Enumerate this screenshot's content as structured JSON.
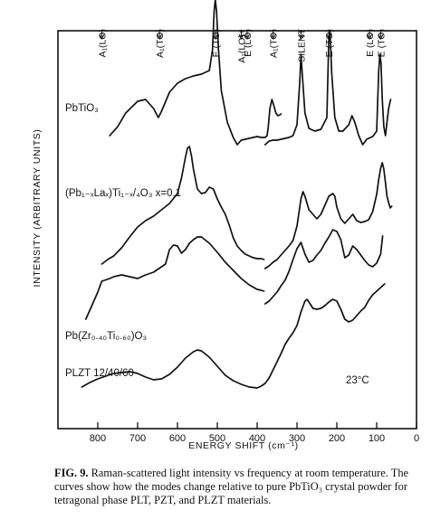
{
  "chart_data": {
    "type": "line",
    "xlabel": "ENERGY SHIFT (cm⁻¹)",
    "ylabel": "INTENSITY (ARBITRARY UNITS)",
    "xlim": [
      900,
      0
    ],
    "xticks": [
      "800",
      "700",
      "600",
      "500",
      "400",
      "300",
      "200",
      "100",
      "0"
    ],
    "grid": false,
    "temperature_label": "23°C",
    "mode_labels": [
      {
        "text": "A₁(LO)",
        "x": 790
      },
      {
        "text": "A₁(TO)",
        "x": 645
      },
      {
        "text": "E (TO)",
        "x": 505
      },
      {
        "text": "A₁(LO)+",
        "x": 440
      },
      {
        "text": "E (LO)",
        "x": 425
      },
      {
        "text": "A₁(TO)",
        "x": 360
      },
      {
        "text": "SILENT",
        "x": 290
      },
      {
        "text": "E (TO)",
        "x": 220
      },
      {
        "text": "E (LO)",
        "x": 118
      },
      {
        "text": "E (TO)",
        "x": 90
      }
    ],
    "series": [
      {
        "name": "PbTiO₃",
        "segments": [
          [
            [
              770,
              40
            ],
            [
              750,
              50
            ],
            [
              730,
              65
            ],
            [
              700,
              78
            ],
            [
              680,
              80
            ],
            [
              660,
              70
            ],
            [
              648,
              60
            ],
            [
              640,
              67
            ],
            [
              620,
              88
            ],
            [
              600,
              98
            ],
            [
              580,
              103
            ],
            [
              560,
              106
            ],
            [
              540,
              108
            ],
            [
              520,
              112
            ],
            [
              512,
              135
            ],
            [
              508,
              178
            ],
            [
              505,
              190
            ],
            [
              502,
              178
            ],
            [
              497,
              135
            ],
            [
              490,
              90
            ],
            [
              475,
              55
            ],
            [
              460,
              38
            ],
            [
              450,
              30
            ],
            [
              440,
              35
            ],
            [
              430,
              36
            ],
            [
              420,
              37
            ],
            [
              410,
              38
            ],
            [
              400,
              39
            ],
            [
              390,
              38
            ],
            [
              380,
              38
            ],
            [
              375,
              40
            ],
            [
              372,
              50
            ],
            [
              368,
              70
            ],
            [
              363,
              80
            ],
            [
              358,
              73
            ],
            [
              353,
              65
            ],
            [
              348,
              62
            ],
            [
              343,
              63
            ],
            [
              340,
              64
            ]
          ],
          [
            [
              380,
              30
            ],
            [
              370,
              34
            ],
            [
              360,
              35
            ],
            [
              350,
              35
            ],
            [
              340,
              36
            ],
            [
              320,
              38
            ],
            [
              310,
              40
            ],
            [
              300,
              52
            ],
            [
              293,
              100
            ],
            [
              290,
              130
            ],
            [
              287,
              110
            ],
            [
              280,
              65
            ],
            [
              270,
              48
            ],
            [
              255,
              45
            ],
            [
              240,
              47
            ],
            [
              225,
              60
            ],
            [
              220,
              150
            ],
            [
              217,
              155
            ],
            [
              213,
              110
            ],
            [
              205,
              60
            ],
            [
              195,
              45
            ],
            [
              185,
              45
            ],
            [
              170,
              52
            ],
            [
              162,
              62
            ],
            [
              155,
              55
            ],
            [
              145,
              40
            ],
            [
              140,
              35
            ],
            [
              135,
              30
            ],
            [
              130,
              33
            ],
            [
              125,
              36
            ],
            [
              120,
              37
            ],
            [
              110,
              39
            ],
            [
              100,
              45
            ],
            [
              95,
              110
            ],
            [
              92,
              130
            ],
            [
              89,
              120
            ],
            [
              86,
              80
            ],
            [
              82,
              50
            ],
            [
              78,
              40
            ],
            [
              74,
              55
            ],
            [
              70,
              70
            ],
            [
              65,
              80
            ]
          ]
        ]
      },
      {
        "name": "(Pb₁₋ₓLaₓ)Ti₁₋ₓ/₄O₃ x=0.1",
        "segments": [
          [
            [
              790,
              20
            ],
            [
              775,
              25
            ],
            [
              760,
              29
            ],
            [
              740,
              38
            ],
            [
              720,
              50
            ],
            [
              700,
              61
            ],
            [
              680,
              68
            ],
            [
              660,
              73
            ],
            [
              640,
              80
            ],
            [
              620,
              87
            ],
            [
              600,
              98
            ],
            [
              590,
              115
            ],
            [
              580,
              138
            ],
            [
              575,
              148
            ],
            [
              570,
              150
            ],
            [
              565,
              140
            ],
            [
              560,
              125
            ],
            [
              550,
              103
            ],
            [
              540,
              98
            ],
            [
              530,
              99
            ],
            [
              520,
              105
            ],
            [
              510,
              103
            ],
            [
              500,
              92
            ],
            [
              490,
              83
            ],
            [
              480,
              75
            ],
            [
              470,
              63
            ],
            [
              460,
              49
            ],
            [
              450,
              40
            ],
            [
              440,
              35
            ],
            [
              430,
              31
            ],
            [
              420,
              29
            ],
            [
              410,
              27
            ],
            [
              400,
              26
            ],
            [
              390,
              26
            ],
            [
              383,
              25
            ]
          ],
          [
            [
              380,
              15
            ],
            [
              370,
              18
            ],
            [
              360,
              22
            ],
            [
              350,
              25
            ],
            [
              340,
              30
            ],
            [
              330,
              35
            ],
            [
              320,
              40
            ],
            [
              310,
              46
            ],
            [
              300,
              62
            ],
            [
              290,
              92
            ],
            [
              285,
              100
            ],
            [
              280,
              95
            ],
            [
              270,
              80
            ],
            [
              260,
              75
            ],
            [
              250,
              70
            ],
            [
              240,
              75
            ],
            [
              230,
              85
            ],
            [
              220,
              95
            ],
            [
              210,
              98
            ],
            [
              205,
              95
            ],
            [
              200,
              83
            ],
            [
              190,
              70
            ],
            [
              180,
              65
            ],
            [
              170,
              70
            ],
            [
              160,
              75
            ],
            [
              150,
              68
            ],
            [
              140,
              66
            ],
            [
              130,
              67
            ],
            [
              120,
              69
            ],
            [
              110,
              78
            ],
            [
              100,
              97
            ],
            [
              95,
              113
            ],
            [
              90,
              126
            ],
            [
              86,
              132
            ],
            [
              82,
              125
            ],
            [
              78,
              110
            ],
            [
              74,
              95
            ],
            [
              70,
              88
            ],
            [
              66,
              82
            ],
            [
              62,
              84
            ]
          ]
        ]
      },
      {
        "name": "Pb(Zr₀.₄₀Ti₀.₆₀)O₃",
        "segments": [
          [
            [
              830,
              35
            ],
            [
              810,
              55
            ],
            [
              800,
              65
            ],
            [
              790,
              77
            ],
            [
              770,
              80
            ],
            [
              760,
              82
            ],
            [
              740,
              84
            ],
            [
              720,
              82
            ],
            [
              700,
              80
            ],
            [
              680,
              84
            ],
            [
              660,
              87
            ],
            [
              640,
              93
            ],
            [
              630,
              96
            ],
            [
              620,
              112
            ],
            [
              610,
              117
            ],
            [
              600,
              116
            ],
            [
              590,
              108
            ],
            [
              580,
              112
            ],
            [
              570,
              119
            ],
            [
              560,
              123
            ],
            [
              550,
              126
            ],
            [
              540,
              126
            ],
            [
              520,
              119
            ],
            [
              500,
              109
            ],
            [
              480,
              98
            ],
            [
              460,
              89
            ],
            [
              440,
              80
            ],
            [
              420,
              73
            ],
            [
              400,
              68
            ],
            [
              390,
              67
            ],
            [
              383,
              66
            ]
          ],
          [
            [
              380,
              52
            ],
            [
              370,
              55
            ],
            [
              360,
              60
            ],
            [
              350,
              65
            ],
            [
              340,
              72
            ],
            [
              330,
              78
            ],
            [
              320,
              88
            ],
            [
              310,
              101
            ],
            [
              300,
              113
            ],
            [
              290,
              120
            ],
            [
              280,
              107
            ],
            [
              270,
              98
            ],
            [
              260,
              100
            ],
            [
              250,
              106
            ],
            [
              240,
              111
            ],
            [
              230,
              119
            ],
            [
              220,
              126
            ],
            [
              210,
              134
            ],
            [
              200,
              132
            ],
            [
              190,
              123
            ],
            [
              180,
              103
            ],
            [
              170,
              106
            ],
            [
              160,
              116
            ],
            [
              150,
              112
            ],
            [
              140,
              106
            ],
            [
              130,
              100
            ],
            [
              120,
              95
            ],
            [
              110,
              93
            ],
            [
              100,
              97
            ],
            [
              90,
              107
            ],
            [
              85,
              127
            ]
          ]
        ]
      },
      {
        "name": "PLZT 12/40/60",
        "segments": [
          [
            [
              840,
              10
            ],
            [
              820,
              15
            ],
            [
              800,
              19
            ],
            [
              780,
              22
            ],
            [
              760,
              25
            ],
            [
              740,
              26
            ],
            [
              720,
              27
            ],
            [
              700,
              25
            ],
            [
              680,
              21
            ],
            [
              660,
              18
            ],
            [
              640,
              19
            ],
            [
              620,
              24
            ],
            [
              600,
              32
            ],
            [
              580,
              42
            ],
            [
              560,
              49
            ],
            [
              550,
              51
            ],
            [
              540,
              50
            ],
            [
              520,
              43
            ],
            [
              500,
              33
            ],
            [
              480,
              23
            ],
            [
              460,
              17
            ],
            [
              440,
              13
            ],
            [
              420,
              10
            ],
            [
              400,
              9
            ],
            [
              390,
              11
            ],
            [
              380,
              14
            ],
            [
              370,
              20
            ],
            [
              360,
              29
            ],
            [
              350,
              38
            ],
            [
              340,
              47
            ],
            [
              330,
              57
            ],
            [
              320,
              64
            ],
            [
              310,
              70
            ],
            [
              300,
              78
            ],
            [
              290,
              93
            ],
            [
              280,
              105
            ],
            [
              275,
              107
            ],
            [
              270,
              104
            ],
            [
              260,
              97
            ],
            [
              250,
              96
            ],
            [
              240,
              97
            ],
            [
              230,
              100
            ],
            [
              220,
              104
            ],
            [
              210,
              107
            ],
            [
              200,
              105
            ],
            [
              190,
              96
            ],
            [
              180,
              85
            ],
            [
              170,
              82
            ],
            [
              160,
              84
            ],
            [
              150,
              89
            ],
            [
              140,
              94
            ],
            [
              130,
              98
            ],
            [
              120,
              106
            ],
            [
              110,
              112
            ],
            [
              100,
              116
            ],
            [
              90,
              120
            ],
            [
              80,
              124
            ]
          ]
        ]
      }
    ]
  }
}
